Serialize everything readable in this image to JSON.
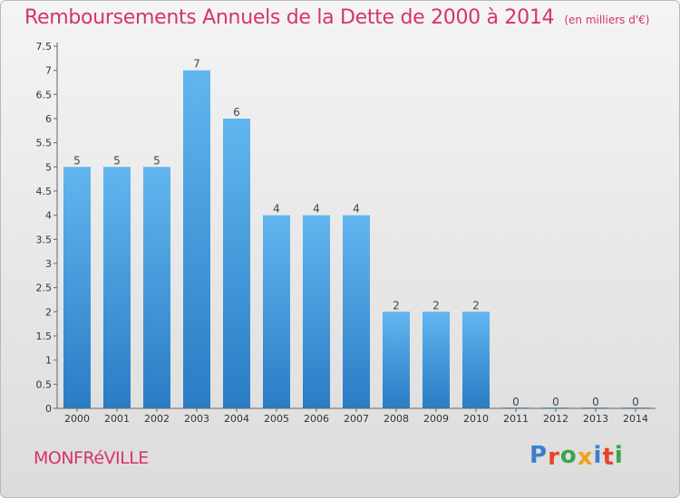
{
  "header": {
    "title": "Remboursements Annuels de la Dette de 2000 à 2014",
    "subtitle": "(en milliers d'€)"
  },
  "footer": {
    "commune": "MONFRéVILLE",
    "logo": "Proxiti"
  },
  "colors": {
    "title": "#d6336c",
    "bar_top": "#62b6ef",
    "bar_bottom": "#2a7cc4",
    "logo_letters": [
      "#3a7fd0",
      "#e8442c",
      "#3aa54a",
      "#f3a21b",
      "#3a7fd0",
      "#e8442c",
      "#3aa54a"
    ]
  },
  "chart_data": {
    "type": "bar",
    "categories": [
      "2000",
      "2001",
      "2002",
      "2003",
      "2004",
      "2005",
      "2006",
      "2007",
      "2008",
      "2009",
      "2010",
      "2011",
      "2012",
      "2013",
      "2014"
    ],
    "values": [
      5,
      5,
      5,
      7,
      6,
      4,
      4,
      4,
      2,
      2,
      2,
      0,
      0,
      0,
      0
    ],
    "data_labels": [
      "5",
      "5",
      "5",
      "7",
      "6",
      "4",
      "4",
      "4",
      "2",
      "2",
      "2",
      "0",
      "0",
      "0",
      "0"
    ],
    "yticks": [
      "0",
      "0.5",
      "1",
      "1.5",
      "2",
      "2.5",
      "3",
      "3.5",
      "4",
      "4.5",
      "5",
      "5.5",
      "6",
      "6.5",
      "7",
      "7.5"
    ],
    "ylim": [
      0,
      7.5
    ],
    "grid": false,
    "legend": "none"
  }
}
